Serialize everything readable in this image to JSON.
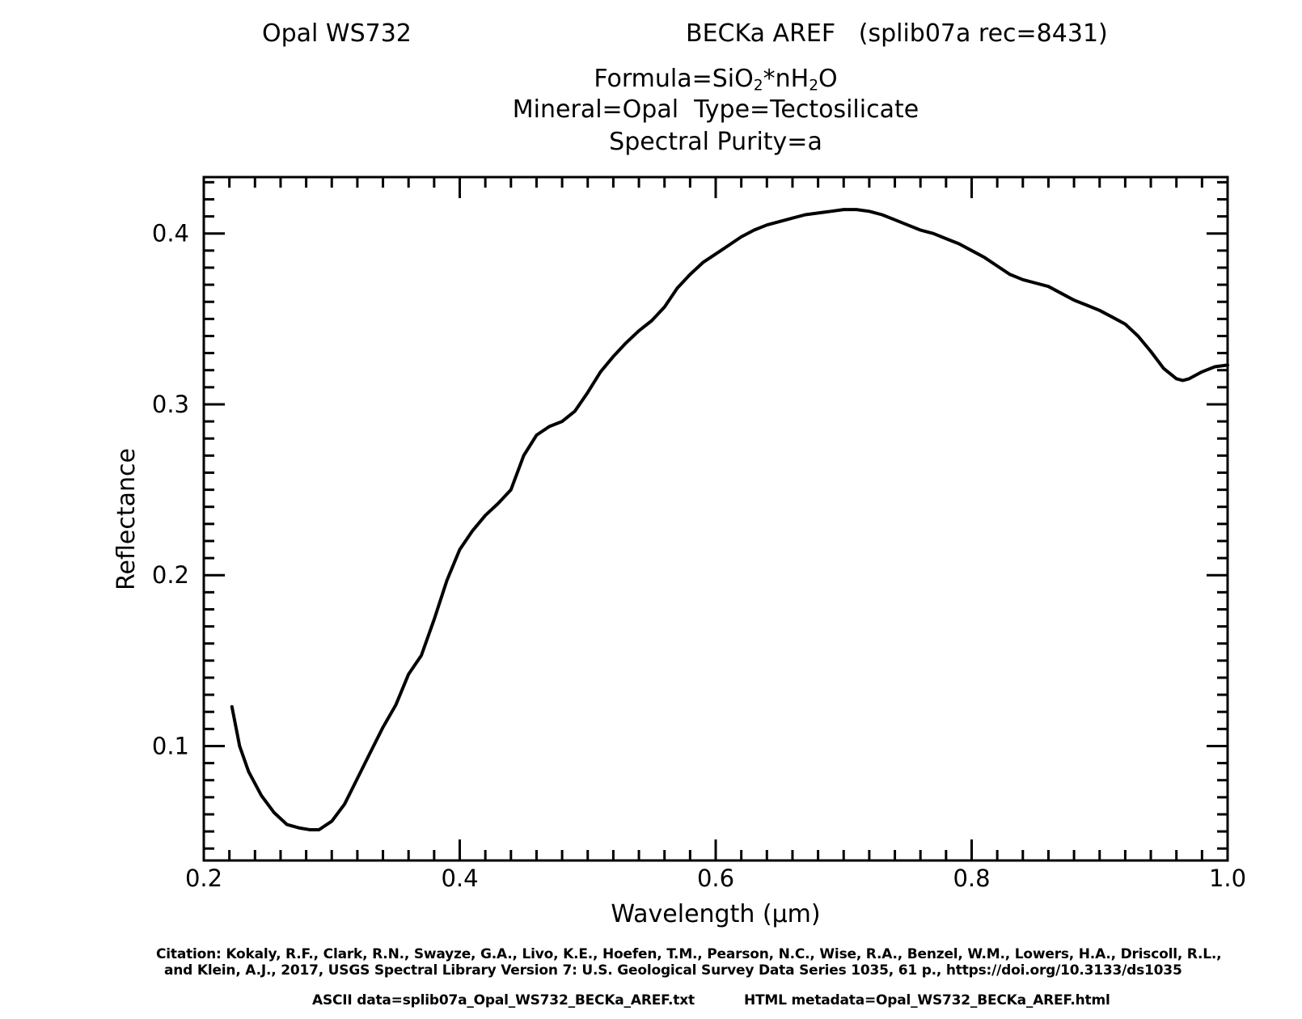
{
  "header": {
    "sample_name": "Opal WS732",
    "record_info": "BECKa AREF   (splib07a rec=8431)",
    "formula_prefix": "Formula=SiO",
    "formula_sub1": "2",
    "formula_mid": "*nH",
    "formula_sub2": "2",
    "formula_suffix": "O",
    "mineral_type": "Mineral=Opal  Type=Tectosilicate",
    "spectral_purity": "Spectral Purity=a"
  },
  "footer": {
    "citation_line1": "Citation: Kokaly, R.F., Clark, R.N., Swayze, G.A., Livo, K.E., Hoefen, T.M., Pearson, N.C., Wise, R.A., Benzel, W.M., Lowers, H.A., Driscoll, R.L.,",
    "citation_line2": "and Klein, A.J., 2017, USGS Spectral Library Version 7: U.S. Geological Survey Data Series 1035, 61 p., https://doi.org/10.3133/ds1035",
    "ascii_data": "ASCII data=splib07a_Opal_WS732_BECKa_AREF.txt",
    "html_metadata": "HTML metadata=Opal_WS732_BECKa_AREF.html"
  },
  "chart_data": {
    "type": "line",
    "xlabel": "Wavelength (μm)",
    "ylabel": "Reflectance",
    "xlim": [
      0.2,
      1.0
    ],
    "ylim": [
      0.033,
      0.433
    ],
    "x_ticks": [
      "0.2",
      "0.4",
      "0.6",
      "0.8",
      "1.0"
    ],
    "y_ticks": [
      "0.1",
      "0.2",
      "0.3",
      "0.4"
    ],
    "x_tick_values": [
      0.2,
      0.4,
      0.6,
      0.8,
      1.0
    ],
    "y_tick_values": [
      0.1,
      0.2,
      0.3,
      0.4
    ],
    "grid": false,
    "series": [
      {
        "x": [
          0.222,
          0.228,
          0.235,
          0.245,
          0.255,
          0.265,
          0.275,
          0.283,
          0.29,
          0.3,
          0.31,
          0.32,
          0.33,
          0.34,
          0.35,
          0.36,
          0.37,
          0.38,
          0.39,
          0.4,
          0.41,
          0.42,
          0.43,
          0.44,
          0.45,
          0.46,
          0.47,
          0.48,
          0.49,
          0.5,
          0.51,
          0.52,
          0.53,
          0.54,
          0.55,
          0.56,
          0.57,
          0.58,
          0.59,
          0.6,
          0.61,
          0.62,
          0.63,
          0.64,
          0.65,
          0.66,
          0.67,
          0.68,
          0.69,
          0.7,
          0.71,
          0.72,
          0.73,
          0.74,
          0.75,
          0.76,
          0.77,
          0.78,
          0.79,
          0.8,
          0.81,
          0.82,
          0.83,
          0.84,
          0.85,
          0.86,
          0.87,
          0.88,
          0.89,
          0.9,
          0.91,
          0.92,
          0.93,
          0.94,
          0.95,
          0.96,
          0.965,
          0.97,
          0.98,
          0.99,
          1.0
        ],
        "y": [
          0.123,
          0.1,
          0.085,
          0.071,
          0.061,
          0.054,
          0.052,
          0.051,
          0.051,
          0.056,
          0.066,
          0.081,
          0.096,
          0.111,
          0.124,
          0.142,
          0.153,
          0.174,
          0.197,
          0.215,
          0.226,
          0.235,
          0.242,
          0.25,
          0.27,
          0.282,
          0.287,
          0.29,
          0.296,
          0.307,
          0.319,
          0.328,
          0.336,
          0.343,
          0.349,
          0.357,
          0.368,
          0.376,
          0.383,
          0.388,
          0.393,
          0.398,
          0.402,
          0.405,
          0.407,
          0.409,
          0.411,
          0.412,
          0.413,
          0.414,
          0.414,
          0.413,
          0.411,
          0.408,
          0.405,
          0.402,
          0.4,
          0.397,
          0.394,
          0.39,
          0.386,
          0.381,
          0.376,
          0.373,
          0.371,
          0.369,
          0.365,
          0.361,
          0.358,
          0.355,
          0.351,
          0.347,
          0.34,
          0.331,
          0.321,
          0.315,
          0.314,
          0.315,
          0.319,
          0.322,
          0.323
        ]
      }
    ]
  }
}
